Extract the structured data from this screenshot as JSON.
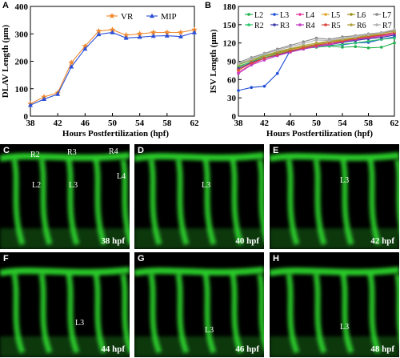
{
  "chart_data": [
    {
      "panel": "A",
      "type": "line",
      "xlabel": "Hours Postfertilization (hpf)",
      "ylabel": "DLAV Length (μm)",
      "xlim": [
        38,
        62
      ],
      "ylim": [
        0,
        400
      ],
      "xticks": [
        38,
        42,
        46,
        50,
        54,
        58,
        62
      ],
      "yticks": [
        0,
        100,
        200,
        300,
        400
      ],
      "legend_position": "top-right",
      "x": [
        38,
        40,
        42,
        44,
        46,
        48,
        50,
        52,
        54,
        56,
        58,
        60,
        62
      ],
      "series": [
        {
          "name": "VR",
          "color": "#f08a30",
          "marker": "star",
          "values": [
            45,
            70,
            85,
            195,
            255,
            310,
            315,
            295,
            300,
            305,
            305,
            305,
            315
          ]
        },
        {
          "name": "MIP",
          "color": "#2a4fd8",
          "marker": "triangle",
          "values": [
            40,
            62,
            80,
            180,
            245,
            298,
            305,
            285,
            288,
            292,
            293,
            290,
            305
          ]
        }
      ]
    },
    {
      "panel": "B",
      "type": "line",
      "xlabel": "Hours Postfertilization (hpf)",
      "ylabel": "ISV Length (μm)",
      "xlim": [
        38,
        62
      ],
      "ylim": [
        0,
        180
      ],
      "xticks": [
        38,
        42,
        46,
        50,
        54,
        58,
        62
      ],
      "yticks": [
        0,
        30,
        60,
        90,
        120,
        150,
        180
      ],
      "legend_position": "top",
      "x": [
        38,
        40,
        42,
        44,
        46,
        48,
        50,
        52,
        54,
        56,
        58,
        60,
        62
      ],
      "series": [
        {
          "name": "L2",
          "color": "#22b14c",
          "values": [
            85,
            92,
            100,
            105,
            108,
            112,
            113,
            115,
            113,
            114,
            112,
            113,
            120
          ]
        },
        {
          "name": "L3",
          "color": "#1f4fd8",
          "values": [
            42,
            47,
            49,
            70,
            108,
            112,
            114,
            116,
            117,
            120,
            121,
            126,
            130
          ]
        },
        {
          "name": "L4",
          "color": "#e6399b",
          "values": [
            72,
            85,
            95,
            101,
            106,
            112,
            114,
            117,
            121,
            125,
            128,
            131,
            134
          ]
        },
        {
          "name": "L5",
          "color": "#e0a42b",
          "values": [
            75,
            88,
            96,
            103,
            108,
            113,
            117,
            120,
            124,
            127,
            131,
            134,
            136
          ]
        },
        {
          "name": "L6",
          "color": "#9e8f1e",
          "values": [
            80,
            90,
            98,
            104,
            110,
            114,
            118,
            122,
            125,
            128,
            132,
            134,
            137
          ]
        },
        {
          "name": "L7",
          "color": "#8a8a8a",
          "values": [
            88,
            96,
            103,
            110,
            116,
            122,
            128,
            126,
            130,
            132,
            135,
            137,
            140
          ]
        },
        {
          "name": "R2",
          "color": "#2bc46a",
          "values": [
            82,
            89,
            96,
            102,
            107,
            111,
            113,
            115,
            118,
            120,
            123,
            126,
            128
          ]
        },
        {
          "name": "R3",
          "color": "#3d3da8",
          "values": [
            78,
            88,
            95,
            100,
            106,
            110,
            115,
            118,
            121,
            124,
            127,
            129,
            133
          ]
        },
        {
          "name": "R4",
          "color": "#c43cc4",
          "values": [
            70,
            84,
            92,
            99,
            105,
            110,
            114,
            118,
            122,
            126,
            129,
            132,
            136
          ]
        },
        {
          "name": "R5",
          "color": "#d9463c",
          "values": [
            76,
            87,
            95,
            101,
            107,
            112,
            116,
            120,
            123,
            127,
            130,
            133,
            137
          ]
        },
        {
          "name": "R6",
          "color": "#b0a040",
          "values": [
            84,
            92,
            99,
            106,
            111,
            116,
            120,
            123,
            126,
            129,
            133,
            136,
            139
          ]
        },
        {
          "name": "R7",
          "color": "#b0b0b0",
          "values": [
            86,
            94,
            102,
            108,
            114,
            119,
            125,
            124,
            128,
            131,
            134,
            137,
            142
          ]
        }
      ]
    }
  ],
  "panels": {
    "A": "A",
    "B": "B",
    "C": {
      "letter": "C",
      "time": "38 hpf",
      "labels": [
        "R2",
        "R3",
        "R4",
        "L2",
        "L3",
        "L4"
      ]
    },
    "D": {
      "letter": "D",
      "time": "40 hpf",
      "labels": [
        "L3"
      ]
    },
    "E": {
      "letter": "E",
      "time": "42 hpf",
      "labels": [
        "L3"
      ]
    },
    "F": {
      "letter": "F",
      "time": "44 hpf",
      "labels": [
        "L3"
      ]
    },
    "G": {
      "letter": "G",
      "time": "46 hpf",
      "labels": [
        "L3"
      ]
    },
    "H": {
      "letter": "H",
      "time": "48 hpf",
      "labels": [
        "L3"
      ]
    }
  },
  "colors": {
    "fluorescence": "#2fe02f",
    "background": "#000000"
  }
}
